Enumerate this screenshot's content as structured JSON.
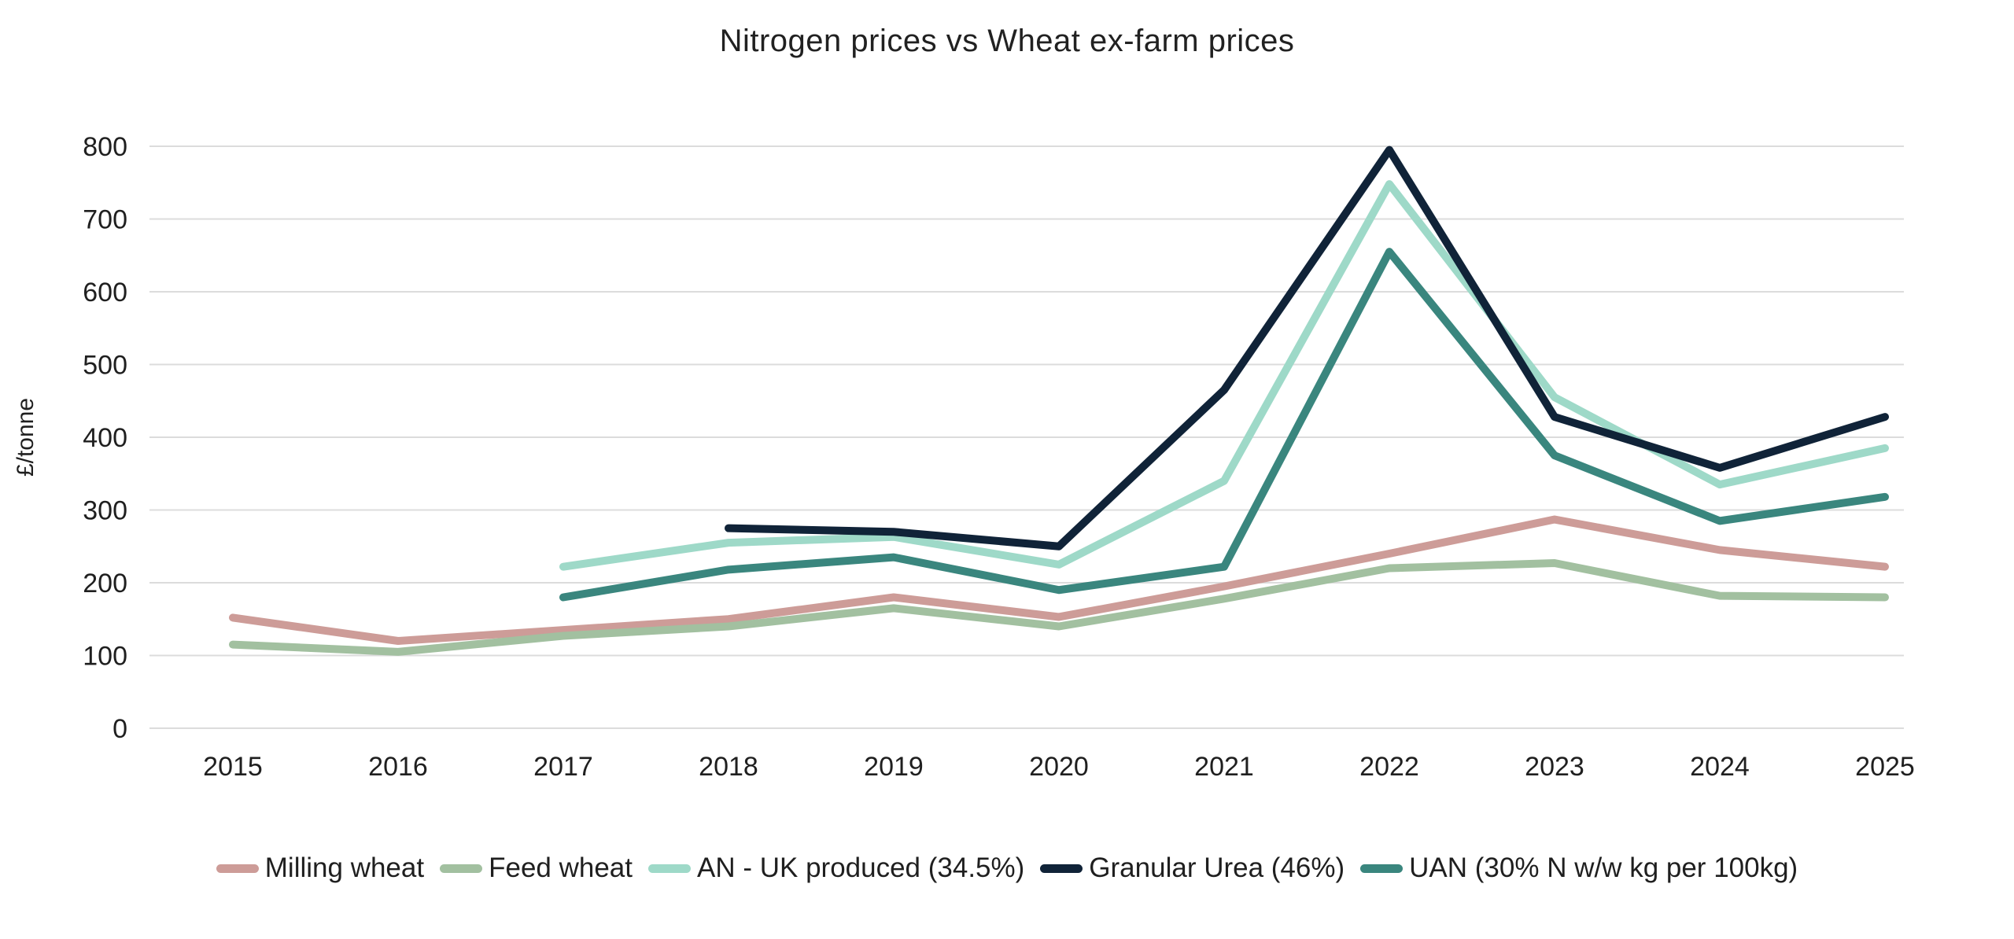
{
  "page": {
    "background_color": "#ffffff",
    "text_color": "#1f1f1f",
    "gridline_color": "#dcdcdc"
  },
  "chart_data": {
    "type": "line",
    "title": "Nitrogen prices vs Wheat ex-farm prices",
    "xlabel": "",
    "ylabel": "£/tonne",
    "ylim": [
      0,
      800
    ],
    "ytick_step": 100,
    "yticks": [
      0,
      100,
      200,
      300,
      400,
      500,
      600,
      700,
      800
    ],
    "grid": "horizontal",
    "legend_position": "bottom",
    "categories": [
      "2015",
      "2016",
      "2017",
      "2018",
      "2019",
      "2020",
      "2021",
      "2022",
      "2023",
      "2024",
      "2025"
    ],
    "series": [
      {
        "name": "Milling wheat",
        "color": "#cd9c98",
        "values": [
          152,
          120,
          135,
          150,
          180,
          153,
          195,
          240,
          287,
          245,
          222
        ]
      },
      {
        "name": "Feed wheat",
        "color": "#a2c0a0",
        "values": [
          115,
          105,
          127,
          140,
          165,
          140,
          178,
          220,
          227,
          182,
          180
        ]
      },
      {
        "name": "AN - UK produced (34.5%)",
        "color": "#9ed9c8",
        "values": [
          null,
          null,
          222,
          255,
          263,
          225,
          340,
          748,
          455,
          335,
          385
        ]
      },
      {
        "name": "Granular Urea (46%)",
        "color": "#102338",
        "values": [
          null,
          null,
          null,
          275,
          270,
          250,
          465,
          795,
          428,
          358,
          428
        ]
      },
      {
        "name": "UAN (30% N w/w kg per 100kg)",
        "color": "#3a867e",
        "values": [
          null,
          null,
          180,
          218,
          235,
          190,
          222,
          655,
          375,
          285,
          318
        ]
      }
    ]
  }
}
